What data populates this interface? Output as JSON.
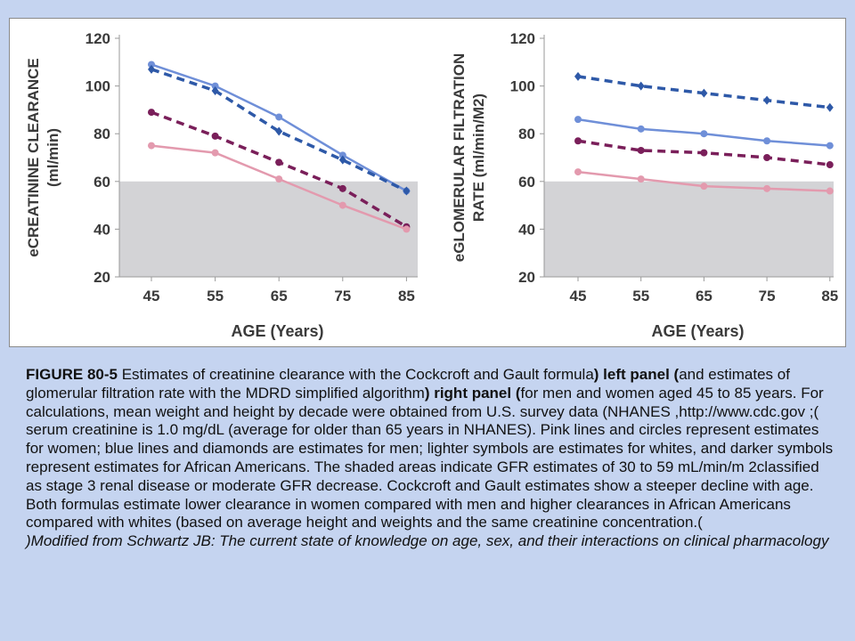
{
  "chart_data": [
    {
      "type": "line",
      "ylabel_lines": [
        "eCREATININE CLEARANCE",
        "(ml/min)"
      ],
      "xlabel": "AGE (Years)",
      "categories": [
        45,
        55,
        65,
        75,
        85
      ],
      "yticks": [
        20,
        40,
        60,
        80,
        100,
        120
      ],
      "ylim": [
        20,
        120
      ],
      "shaded_below": 60,
      "series": [
        {
          "values": [
            109,
            100,
            87,
            71,
            56
          ],
          "color": "#6f8fd8",
          "style": "solid",
          "marker": "circle"
        },
        {
          "values": [
            107,
            98,
            81,
            69,
            56
          ],
          "color": "#2e59a8",
          "style": "dashed",
          "marker": "diamond"
        },
        {
          "values": [
            89,
            79,
            68,
            57,
            41
          ],
          "color": "#7a1f5a",
          "style": "dashed",
          "marker": "circle"
        },
        {
          "values": [
            75,
            72,
            61,
            50,
            40
          ],
          "color": "#e39aae",
          "style": "solid",
          "marker": "circle"
        }
      ]
    },
    {
      "type": "line",
      "ylabel_lines": [
        "eGLOMERULAR FILTRATION",
        "RATE (ml/min/M2)"
      ],
      "xlabel": "AGE (Years)",
      "categories": [
        45,
        55,
        65,
        75,
        85
      ],
      "yticks": [
        20,
        40,
        60,
        80,
        100,
        120
      ],
      "ylim": [
        20,
        120
      ],
      "shaded_below": 60,
      "series": [
        {
          "values": [
            104,
            100,
            97,
            94,
            91
          ],
          "color": "#2e59a8",
          "style": "dashed",
          "marker": "diamond"
        },
        {
          "values": [
            86,
            82,
            80,
            77,
            75
          ],
          "color": "#6f8fd8",
          "style": "solid",
          "marker": "circle"
        },
        {
          "values": [
            77,
            73,
            72,
            70,
            67
          ],
          "color": "#7a1f5a",
          "style": "dashed",
          "marker": "circle"
        },
        {
          "values": [
            64,
            61,
            58,
            57,
            56
          ],
          "color": "#e39aae",
          "style": "solid",
          "marker": "circle"
        }
      ]
    }
  ],
  "caption": {
    "figure_label": "FIGURE 80-5",
    "p1": "  Estimates of creatinine clearance with the Cockcroft and Gault formula",
    "b1": ") left panel (",
    "p2": "and estimates of glomerular filtration rate with the MDRD simplified algorithm",
    "b2": ") right panel (",
    "p3": "for men and women aged 45 to 85 years. For calculations, mean weight and height by decade were obtained from U.S. survey data (NHANES ,http://www.cdc.gov ;( serum creatinine is 1.0 mg/dL (average for older than 65 years in NHANES). Pink lines and circles represent estimates for women; blue lines and diamonds are estimates for men; lighter symbols are estimates for whites, and darker symbols represent estimates for African Americans. The shaded areas indicate GFR estimates of 30 to 59 mL/min/m 2classified as stage 3 renal disease or moderate GFR decrease. Cockcroft and Gault estimates show a steeper decline with age. Both formulas estimate lower clearance in women compared with men and higher clearances in African Americans compared with whites (based on average height and weights and the same creatinine concentration.(",
    "credit": ")Modified from Schwartz JB: The current state of knowledge on age, sex, and their interactions on clinical pharmacology"
  }
}
